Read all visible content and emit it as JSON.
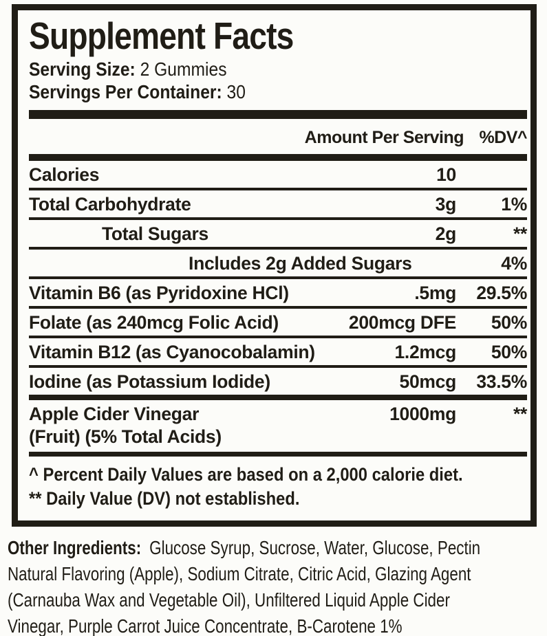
{
  "colors": {
    "ink": "#201d16",
    "background": "#fcfcf9"
  },
  "supplement_facts": {
    "title": "Supplement Facts",
    "serving_size": {
      "label": "Serving Size:",
      "value": "2 Gummies"
    },
    "servings_per_container": {
      "label": "Servings Per Container:",
      "value": "30"
    },
    "columns": {
      "amount": "Amount Per Serving",
      "dv": "%DV^"
    },
    "rows": [
      {
        "name": "Calories",
        "amount": "10",
        "dv": ""
      },
      {
        "name": "Total Carbohydrate",
        "amount": "3g",
        "dv": "1%"
      },
      {
        "name": "Total Sugars",
        "amount": "2g",
        "dv": "**"
      },
      {
        "name": "Includes 2g Added Sugars",
        "amount": "",
        "dv": "4%"
      },
      {
        "name": "Vitamin B6 (as Pyridoxine HCl)",
        "amount": ".5mg",
        "dv": "29.5%"
      },
      {
        "name": "Folate (as 240mcg Folic Acid)",
        "amount": "200mcg DFE",
        "dv": "50%"
      },
      {
        "name": "Vitamin B12 (as Cyanocobalamin)",
        "amount": "1.2mcg",
        "dv": "50%"
      },
      {
        "name": "Iodine (as Potassium Iodide)",
        "amount": "50mcg",
        "dv": "33.5%"
      },
      {
        "name": "Apple Cider Vinegar",
        "name_line2": "(Fruit) (5% Total Acids)",
        "amount": "1000mg",
        "dv": "**"
      }
    ],
    "footnotes": [
      "^ Percent Daily Values are based on a 2,000 calorie diet.",
      "** Daily Value (DV) not established."
    ]
  },
  "other_ingredients": {
    "label": "Other Ingredients:",
    "lines": [
      "Glucose Syrup, Sucrose, Water, Glucose, Pectin",
      "Natural Flavoring (Apple), Sodium Citrate, Citric Acid, Glazing Agent",
      "(Carnauba Wax and Vegetable Oil), Unfiltered Liquid Apple Cider",
      "Vinegar, Purple Carrot Juice Concentrate, B-Carotene 1%"
    ]
  }
}
